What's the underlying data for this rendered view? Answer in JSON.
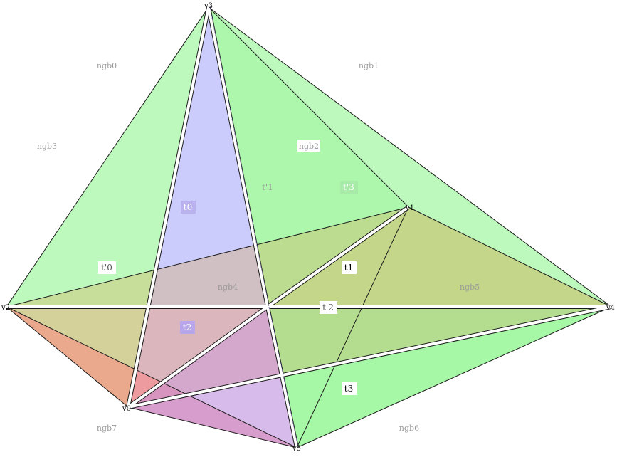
{
  "vertices": [
    {
      "id": "v3",
      "label": "v3"
    },
    {
      "id": "v1",
      "label": "v1"
    },
    {
      "id": "v2",
      "label": "v2"
    },
    {
      "id": "v4",
      "label": "v4"
    },
    {
      "id": "v0",
      "label": "v0"
    },
    {
      "id": "v5",
      "label": "v5"
    }
  ],
  "region_labels": [
    {
      "id": "ngb0",
      "text": "ngb0",
      "color": "#9a9a9a"
    },
    {
      "id": "ngb1",
      "text": "ngb1",
      "color": "#9a9a9a"
    },
    {
      "id": "ngb2",
      "text": "ngb2",
      "color": "#9a9a9a"
    },
    {
      "id": "ngb3",
      "text": "ngb3",
      "color": "#9a9a9a"
    },
    {
      "id": "ngb4",
      "text": "ngb4",
      "color": "#9a9a9a"
    },
    {
      "id": "ngb5",
      "text": "ngb5",
      "color": "#9a9a9a"
    },
    {
      "id": "ngb6",
      "text": "ngb6",
      "color": "#9a9a9a"
    },
    {
      "id": "ngb7",
      "text": "ngb7",
      "color": "#9a9a9a"
    }
  ],
  "triangle_labels": [
    {
      "id": "t0",
      "text": "t0",
      "color": "#ffffff",
      "bg": "#b9b2ee"
    },
    {
      "id": "t1",
      "text": "t1",
      "color": "#000000",
      "bg": "#ffffff"
    },
    {
      "id": "t2",
      "text": "t2",
      "color": "#ffffff",
      "bg": "#b8a6ea"
    },
    {
      "id": "t3",
      "text": "t3",
      "color": "#000000",
      "bg": "#ffffff"
    },
    {
      "id": "tp0",
      "text": "t'0",
      "color": "#555555",
      "bg": "#ffffff"
    },
    {
      "id": "tp1",
      "text": "t'1",
      "color": "#9a9a9a",
      "bg": "none"
    },
    {
      "id": "tp2",
      "text": "t'2",
      "color": "#555555",
      "bg": "#ffffff"
    },
    {
      "id": "tp3",
      "text": "t'3",
      "color": "#ffffff",
      "bg": "#a8eaa8"
    }
  ],
  "colors": {
    "green": "#7cf47c",
    "blue": "#8c8cf8",
    "red": "#ff7f7f",
    "olive": "#bfc86a",
    "orange": "#e8b88a",
    "edge": "#1a1a1a"
  }
}
